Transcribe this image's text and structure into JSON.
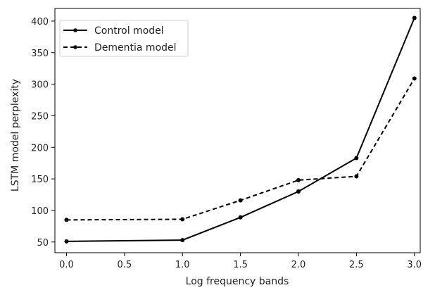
{
  "chart_data": {
    "type": "line",
    "xlabel": "Log frequency bands",
    "ylabel": "LSTM model perplexity",
    "xlim": [
      -0.1,
      3.05
    ],
    "ylim": [
      33,
      420
    ],
    "xticks": [
      0.0,
      0.5,
      1.0,
      1.5,
      2.0,
      2.5,
      3.0
    ],
    "xtick_labels": [
      "0.0",
      "0.5",
      "1.0",
      "1.5",
      "2.0",
      "2.5",
      "3.0"
    ],
    "yticks": [
      50,
      100,
      150,
      200,
      250,
      300,
      350,
      400
    ],
    "ytick_labels": [
      "50",
      "100",
      "150",
      "200",
      "250",
      "300",
      "350",
      "400"
    ],
    "grid": false,
    "legend_position": "top-left",
    "x": [
      0.0,
      1.0,
      1.5,
      2.0,
      2.5,
      3.0
    ],
    "series": [
      {
        "name": "Control model",
        "line_style": "solid",
        "color": "#000000",
        "marker": "dot",
        "values": [
          51,
          53,
          89,
          130,
          183,
          405
        ]
      },
      {
        "name": "Dementia model",
        "line_style": "dashed",
        "color": "#000000",
        "marker": "dot",
        "values": [
          85,
          86,
          116,
          148,
          154,
          309
        ]
      }
    ]
  }
}
